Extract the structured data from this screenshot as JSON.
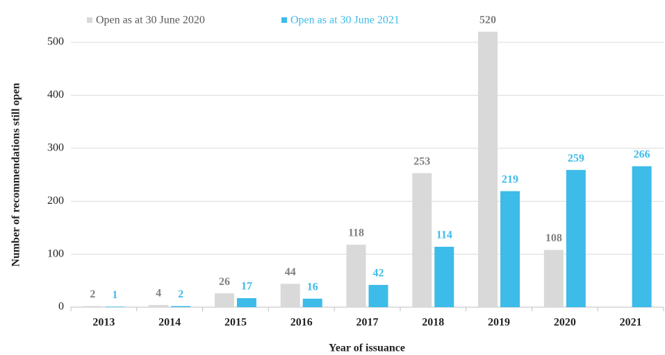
{
  "chart_data": {
    "type": "bar",
    "y_label": "Number of recommendations still open",
    "x_label": "Year of issuance",
    "categories": [
      "2013",
      "2014",
      "2015",
      "2016",
      "2017",
      "2018",
      "2019",
      "2020",
      "2021"
    ],
    "series": [
      {
        "name": "Open as at 30 June 2020",
        "color": "#d9d9d9",
        "label_color": "#7f7f7f",
        "values": [
          2,
          4,
          26,
          44,
          118,
          253,
          520,
          108,
          null
        ]
      },
      {
        "name": "Open as at 30 June 2021",
        "color": "#3dbbe9",
        "label_color": "#3dbbe9",
        "values": [
          1,
          2,
          17,
          16,
          42,
          114,
          219,
          259,
          266
        ]
      }
    ],
    "ylim": [
      0,
      550
    ],
    "yticks": [
      0,
      100,
      200,
      300,
      400,
      500
    ],
    "grid": true,
    "legend": "top"
  }
}
